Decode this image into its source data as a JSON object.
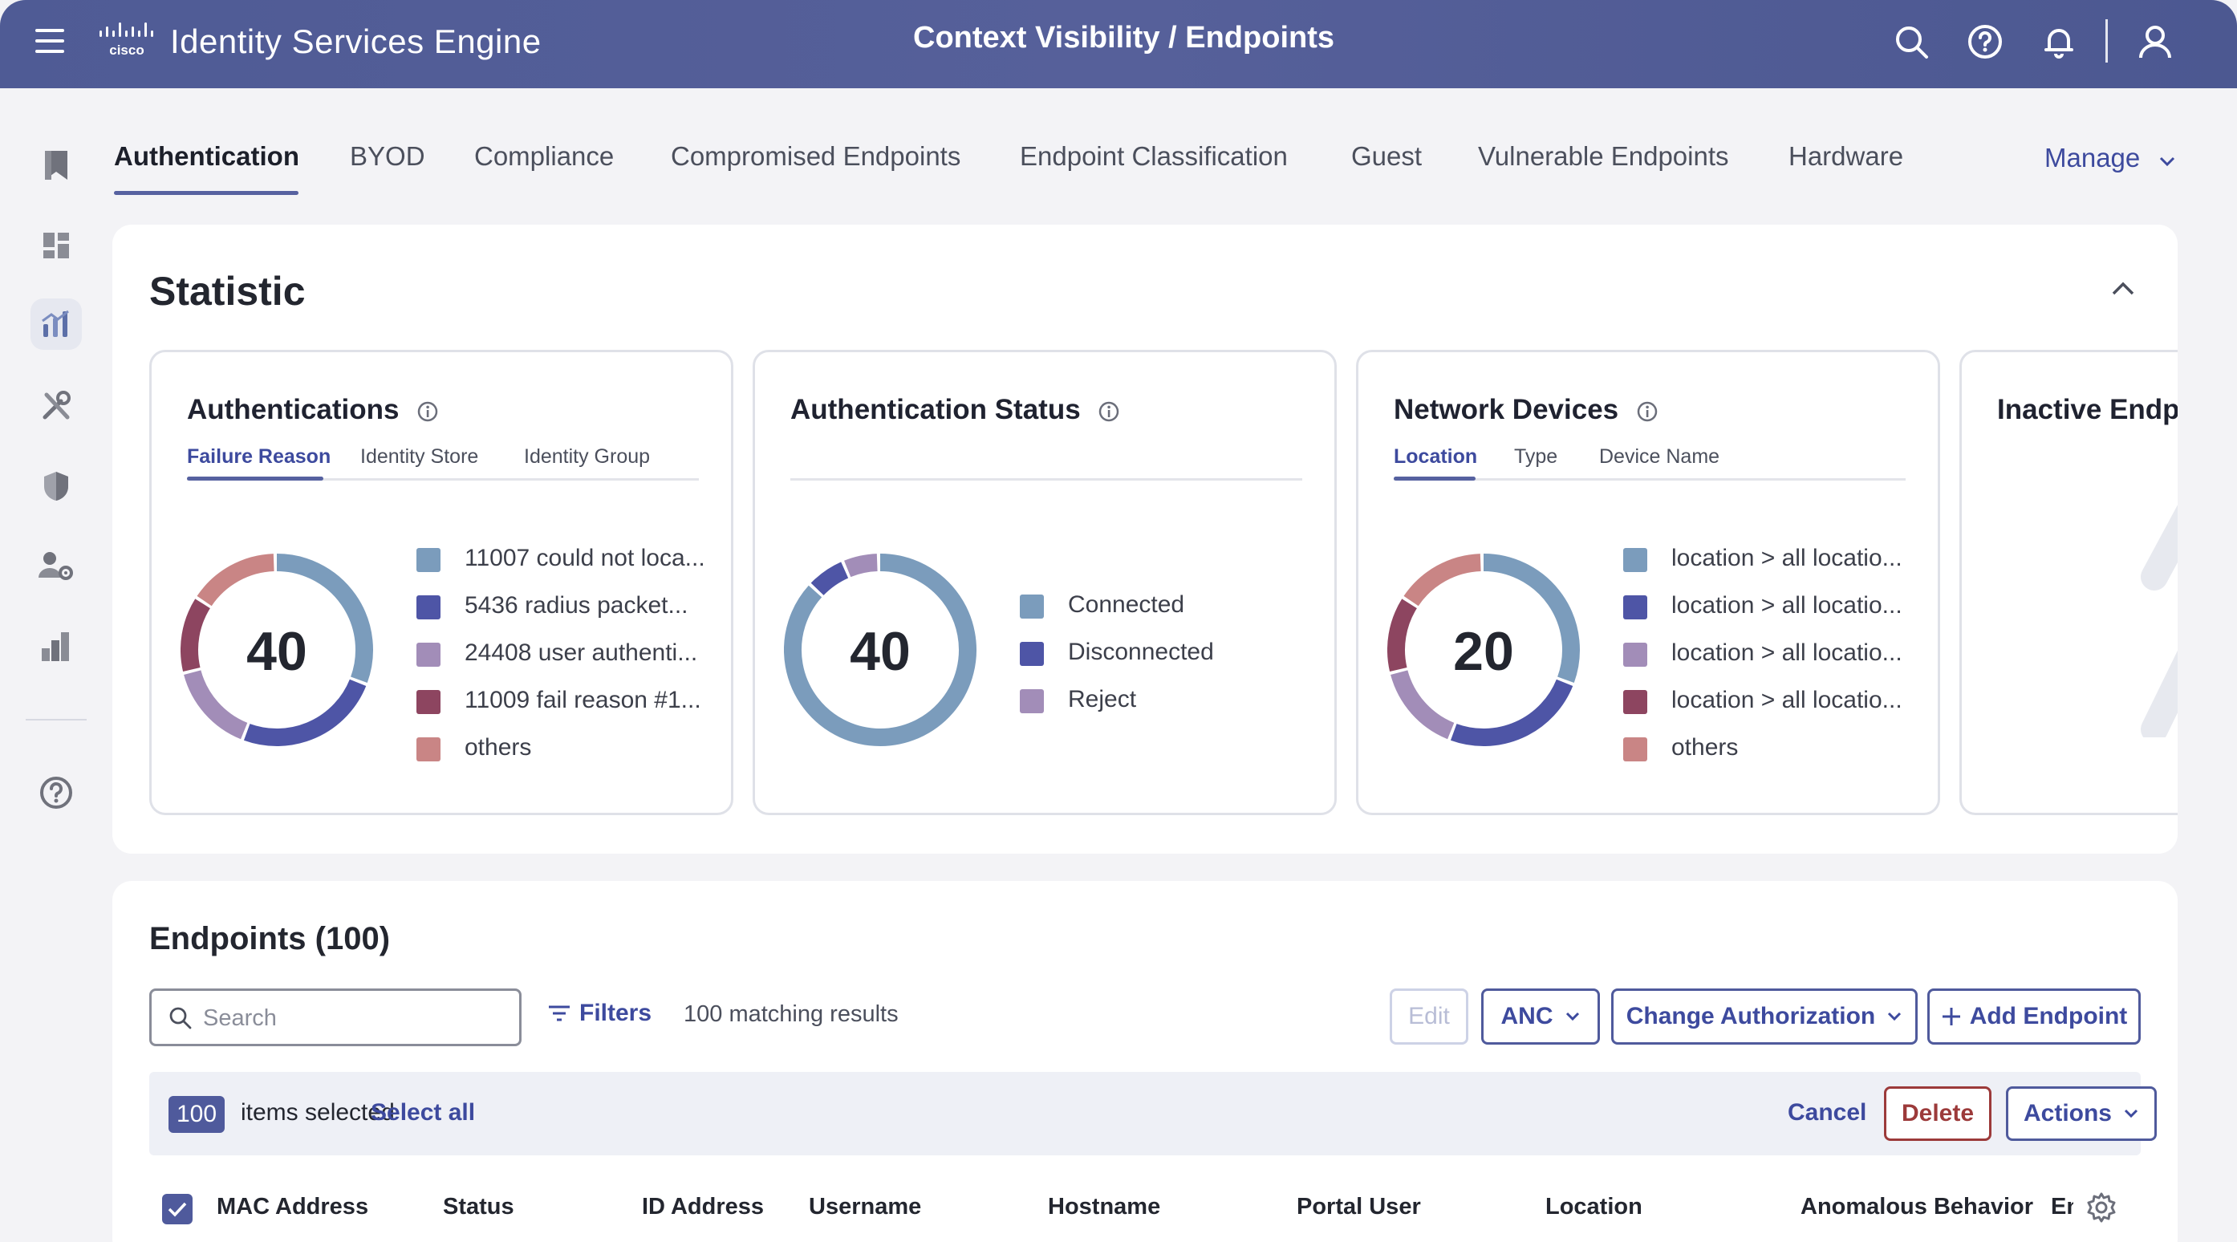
{
  "header": {
    "app_title": "Identity Services Engine",
    "page_title": "Context Visibility / Endpoints",
    "logo_text": "cisco",
    "icons": [
      "menu-icon",
      "search-icon",
      "help-icon",
      "bell-icon",
      "user-icon"
    ]
  },
  "sidebar": {
    "items": [
      "bookmark-icon",
      "dashboard-icon",
      "context-visibility-icon",
      "tools-icon",
      "policy-shield-icon",
      "admin-user-icon",
      "work-centers-icon",
      "help-icon"
    ],
    "active": "context-visibility-icon"
  },
  "tabs": {
    "items": [
      "Authentication",
      "BYOD",
      "Compliance",
      "Compromised Endpoints",
      "Endpoint Classification",
      "Guest",
      "Vulnerable Endpoints",
      "Hardware"
    ],
    "active": "Authentication",
    "manage": "Manage"
  },
  "statistic": {
    "title": "Statistic",
    "cards": [
      {
        "title": "Authentications",
        "subtabs": [
          "Failure Reason",
          "Identity Store",
          "Identity Group"
        ],
        "active_subtab": "Failure Reason",
        "total": "40",
        "legend": [
          "11007 could not loca...",
          "5436 radius packet...",
          "24408 user authenti...",
          "11009 fail reason #1...",
          "others"
        ]
      },
      {
        "title": "Authentication Status",
        "total": "40",
        "legend": [
          "Connected",
          "Disconnected",
          "Reject"
        ]
      },
      {
        "title": "Network Devices",
        "subtabs": [
          "Location",
          "Type",
          "Device Name"
        ],
        "active_subtab": "Location",
        "total": "20",
        "legend": [
          "location > all locatio...",
          "location > all locatio...",
          "location > all locatio...",
          "location > all locatio...",
          "others"
        ]
      },
      {
        "title": "Inactive Endpo"
      }
    ],
    "colors": {
      "c1": "#7b9cbc",
      "c2": "#4e55a6",
      "c3": "#a28db8",
      "c4": "#8d4560",
      "c5": "#c98585"
    }
  },
  "endpoints": {
    "title": "Endpoints (100)",
    "search_placeholder": "Search",
    "filters_label": "Filters",
    "matching": "100 matching results",
    "buttons": {
      "edit": "Edit",
      "anc": "ANC",
      "change_auth": "Change Authorization",
      "add": "Add Endpoint"
    },
    "selection": {
      "count": "100",
      "text": "items selected",
      "select_all": "Select all",
      "cancel": "Cancel",
      "delete": "Delete",
      "actions": "Actions"
    },
    "columns": [
      "MAC Address",
      "Status",
      "ID Address",
      "Username",
      "Hostname",
      "Portal User",
      "Location",
      "Anomalous Behavior",
      "En"
    ]
  }
}
